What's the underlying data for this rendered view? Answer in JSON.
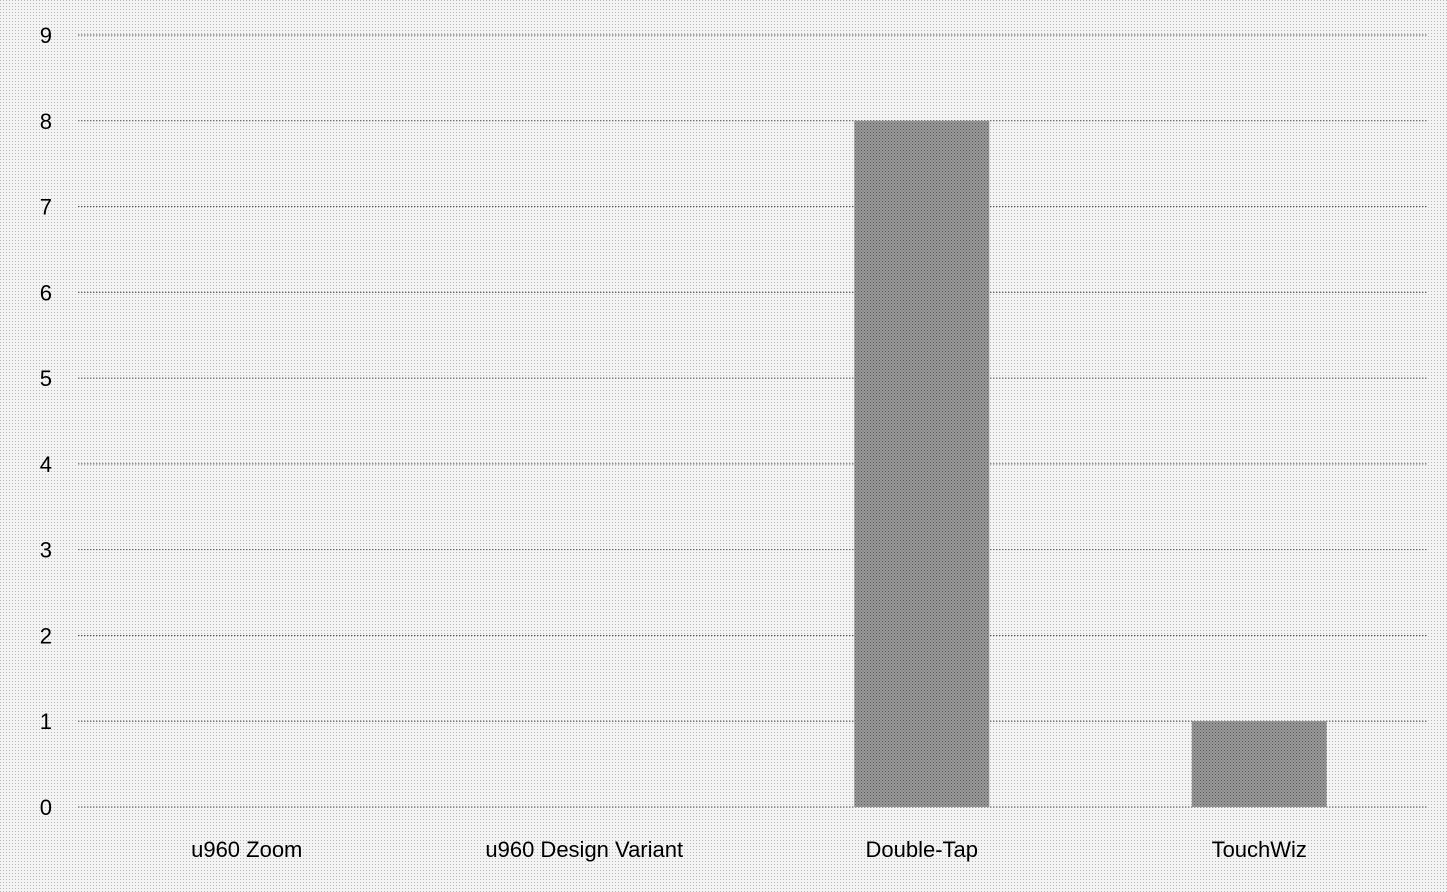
{
  "chart_data": {
    "type": "bar",
    "title": "",
    "xlabel": "",
    "ylabel": "",
    "categories": [
      "u960 Zoom",
      "u960 Design Variant",
      "Double-Tap",
      "TouchWiz"
    ],
    "series": [
      {
        "values": [
          0,
          0,
          8,
          1
        ]
      }
    ],
    "ylim": [
      0,
      9
    ],
    "yticks": [
      0,
      1,
      2,
      3,
      4,
      5,
      6,
      7,
      8,
      9
    ],
    "grid": true,
    "legend": "none",
    "colors": {
      "background": "#f2f2f2",
      "bar": "#8c8c8c",
      "grid": "#555555",
      "data_label": "#ffffff"
    }
  }
}
